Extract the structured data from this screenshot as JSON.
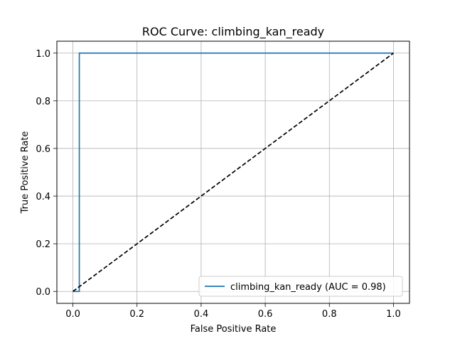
{
  "chart_data": {
    "type": "line",
    "title": "ROC Curve: climbing_kan_ready",
    "xlabel": "False Positive Rate",
    "ylabel": "True Positive Rate",
    "xlim": [
      -0.05,
      1.05
    ],
    "ylim": [
      -0.05,
      1.05
    ],
    "xticks": [
      0.0,
      0.2,
      0.4,
      0.6,
      0.8,
      1.0
    ],
    "yticks": [
      0.0,
      0.2,
      0.4,
      0.6,
      0.8,
      1.0
    ],
    "xtick_labels": [
      "0.0",
      "0.2",
      "0.4",
      "0.6",
      "0.8",
      "1.0"
    ],
    "ytick_labels": [
      "0.0",
      "0.2",
      "0.4",
      "0.6",
      "0.8",
      "1.0"
    ],
    "grid": true,
    "legend_position": "lower-right",
    "series": [
      {
        "name": "climbing_kan_ready (AUC = 0.98)",
        "color": "#1f77b4",
        "style": "solid",
        "x": [
          0.0,
          0.0,
          0.02,
          0.02,
          1.0
        ],
        "y": [
          0.0,
          0.0,
          0.0,
          1.0,
          1.0
        ]
      },
      {
        "color": "#000000",
        "style": "dashed",
        "x": [
          0.0,
          1.0
        ],
        "y": [
          0.0,
          1.0
        ]
      }
    ]
  }
}
